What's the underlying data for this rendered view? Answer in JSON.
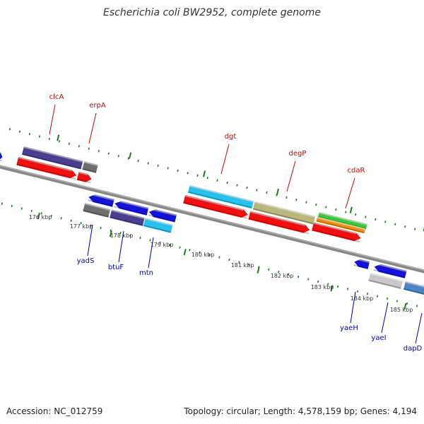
{
  "title": "Escherichia coli BW2952, complete genome",
  "footer": {
    "accession": "Accession: NC_012759",
    "topology": "Topology: circular; Length: 4,578,159 bp; Genes: 4,194"
  },
  "colors": {
    "red": "#ee1111",
    "blue": "#1414d8",
    "navy": "#4a3f8e",
    "gray": "#6e6e6e",
    "lightgray": "#c8c8c8",
    "cyan": "#29c0ee",
    "olive": "#b9b67e",
    "green": "#3ec73e",
    "orange": "#f28f1a",
    "steel": "#4d86c4",
    "tick": "#1d7a1d",
    "label_top": "#cc0000",
    "label_bottom": "#0000aa"
  },
  "ticks": [
    {
      "label": "176 kbp"
    },
    {
      "label": "177 kbp"
    },
    {
      "label": "178 kbp"
    },
    {
      "label": "179 kbp"
    },
    {
      "label": "180 kbp"
    },
    {
      "label": "181 kbp"
    },
    {
      "label": "182 kbp"
    },
    {
      "label": "183 kbp"
    },
    {
      "label": "184 kbp"
    },
    {
      "label": "185 kbp"
    }
  ],
  "genes_top": [
    {
      "name": "clcA"
    },
    {
      "name": "erpA"
    },
    {
      "name": "dgt"
    },
    {
      "name": "degP"
    },
    {
      "name": "cdaR"
    }
  ],
  "genes_bottom": [
    {
      "name": "yadS"
    },
    {
      "name": "btuF"
    },
    {
      "name": "mtn"
    },
    {
      "name": "yaeH"
    },
    {
      "name": "yaeI"
    },
    {
      "name": "dapD"
    }
  ]
}
